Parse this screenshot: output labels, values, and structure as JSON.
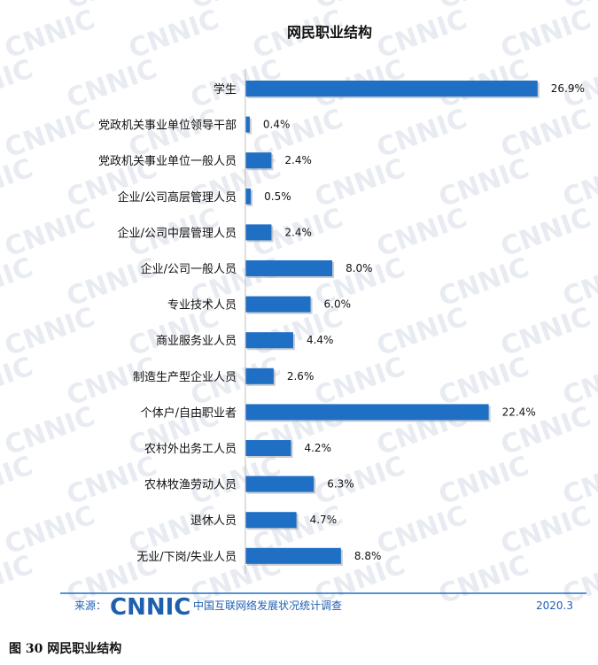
{
  "chart_data": {
    "type": "bar",
    "orientation": "horizontal",
    "title": "网民职业结构",
    "categories": [
      "学生",
      "党政机关事业单位领导干部",
      "党政机关事业单位一般人员",
      "企业/公司高层管理人员",
      "企业/公司中层管理人员",
      "企业/公司一般人员",
      "专业技术人员",
      "商业服务业人员",
      "制造生产型企业人员",
      "个体户/自由职业者",
      "农村外出务工人员",
      "农林牧渔劳动人员",
      "退休人员",
      "无业/下岗/失业人员"
    ],
    "values": [
      26.9,
      0.4,
      2.4,
      0.5,
      2.4,
      8.0,
      6.0,
      4.4,
      2.6,
      22.4,
      4.2,
      6.3,
      4.7,
      8.8
    ],
    "value_labels": [
      "26.9%",
      "0.4%",
      "2.4%",
      "0.5%",
      "2.4%",
      "8.0%",
      "6.0%",
      "4.4%",
      "2.6%",
      "22.4%",
      "4.2%",
      "6.3%",
      "4.7%",
      "8.8%"
    ],
    "xlim": [
      0,
      27
    ],
    "grid": false,
    "bar_color": "#1f6fc5"
  },
  "watermark_text": "CNNIC",
  "footer": {
    "source_label": "来源：",
    "logo_text": "CNNIC",
    "org_name": "中国互联网络发展状况统计调查",
    "date": "2020.3",
    "line_color": "#1f6fc5",
    "text_color": "#1f5fb0"
  },
  "caption": "图 30   网民职业结构"
}
